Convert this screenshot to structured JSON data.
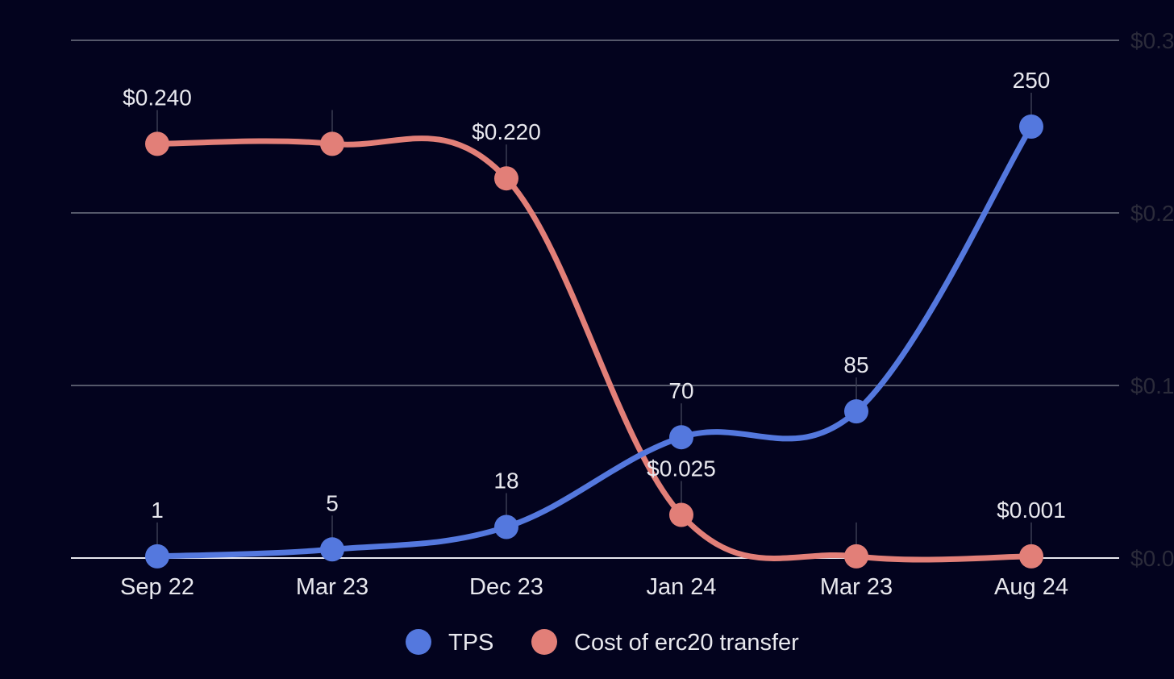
{
  "chart_data": {
    "type": "line",
    "categories": [
      "Sep 22",
      "Mar 23",
      "Dec 23",
      "Jan 24",
      "Mar 23",
      "Aug 24"
    ],
    "series": [
      {
        "name": "TPS",
        "values": [
          1,
          5,
          18,
          70,
          85,
          250
        ],
        "labels": [
          "1",
          "5",
          "18",
          "70",
          "85",
          "250"
        ],
        "color": "#5478de",
        "axis": "left"
      },
      {
        "name": "Cost of erc20 transfer",
        "values": [
          0.24,
          0.24,
          0.22,
          0.025,
          0.001,
          0.001
        ],
        "labels": [
          "$0.240",
          "",
          "$0.220",
          "$0.025",
          "",
          "$0.001"
        ],
        "color": "#e27f78",
        "axis": "right"
      }
    ],
    "right_tick_labels": [
      "$0.3",
      "$0.2",
      "$0.1",
      "$0.0"
    ],
    "left_ylim": [
      0,
      300
    ],
    "right_ylim": [
      0,
      0.3
    ],
    "legend": "bottom",
    "grid": true,
    "colors": {
      "background": "#03031e",
      "grid": "#55586a",
      "baseline": "#e8e8ee",
      "text": "#e8e8ee"
    }
  }
}
